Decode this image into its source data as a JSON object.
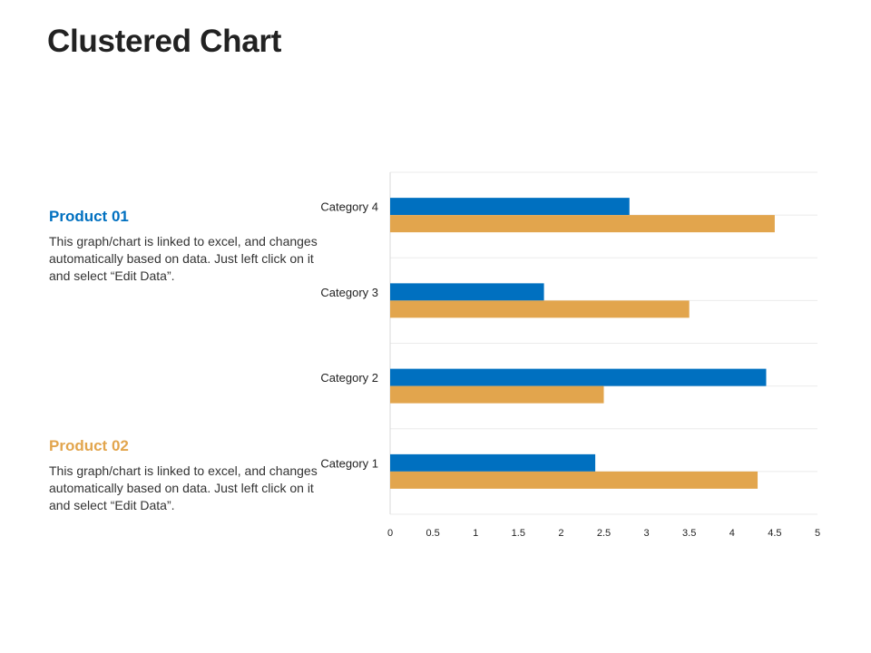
{
  "page": {
    "title": "Clustered Chart"
  },
  "legend": [
    {
      "title": "Product 01",
      "description": "This graph/chart is linked to excel, and changes automatically based on data. Just left click on it and select “Edit Data”.",
      "color": "#0070C0"
    },
    {
      "title": "Product 02",
      "description": "This graph/chart is linked to excel, and changes automatically based on data. Just left click on it and select “Edit Data”.",
      "color": "#E2A54D"
    }
  ],
  "chart_data": {
    "type": "bar",
    "orientation": "horizontal",
    "categories": [
      "Category 1",
      "Category 2",
      "Category 3",
      "Category 4"
    ],
    "series": [
      {
        "name": "Product 01",
        "values": [
          2.4,
          4.4,
          1.8,
          2.8
        ],
        "color": "#0070C0"
      },
      {
        "name": "Product 02",
        "values": [
          4.3,
          2.5,
          3.5,
          4.5
        ],
        "color": "#E2A54D"
      }
    ],
    "xlim": [
      0,
      5
    ],
    "xticks": [
      "0",
      "0.5",
      "1",
      "1.5",
      "2",
      "2.5",
      "3",
      "3.5",
      "4",
      "4.5",
      "5"
    ],
    "grid": true,
    "title": "",
    "xlabel": "",
    "ylabel": ""
  }
}
